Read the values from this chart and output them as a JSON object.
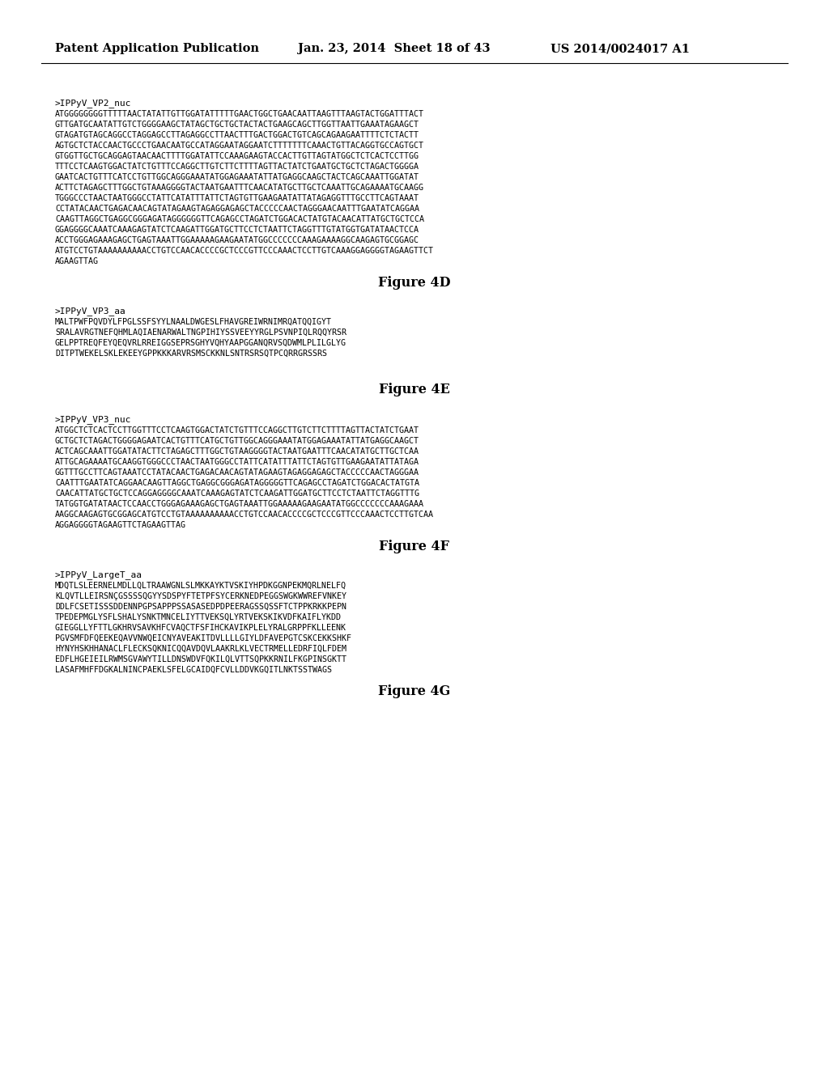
{
  "header_left": "Patent Application Publication",
  "header_mid": "Jan. 23, 2014  Sheet 18 of 43",
  "header_right": "US 2014/0024017 A1",
  "bg_color": "#ffffff",
  "sections": [
    {
      "id": "fig4D",
      "label": ">IPPyV_VP2_nuc",
      "figure_caption": "Figure 4D",
      "content": [
        "ATGGGGGGGGTTTTTAACTATATTGTTGGATATTTTTGAACTGGCTGAACAATTAAGTTTAAGTACTGGATTTACT",
        "GTTGATGCAATATTGTCTGGGGAAGCTATAGCTGCTGCTACTACTGAAGCAGCTTGGTTAATTGAAATAGAAGCT",
        "GTAGATGTAGCAGGCCTAGGAGCCTTAGAGGCCTTAACTTTGACTGGACTGTCAGCAGAAGAATTTTCTCTACTT",
        "AGTGCTCTACCAACTGCCCTGAACAATGCCATAGGAATAGGAATCTTTTTTTCAAACTGTTACAGGTGCCAGTGCT",
        "GTGGTTGCTGCAGGAGTAACAACTTTTGGATATTCCAAAGAAGTACCACTTGTTAGTATGGCTCTCACTCCTTGG",
        "TTTCCTCAAGTGGACTATCTGTTTCCAGGCTTGTCTTCTTTTAGTTACTATCTGAATGCTGCTCTAGACTGGGGA",
        "GAATCACTGTTTCATCCTGTTGGCAGGGAAATATGGAGAAATATTATGAGGCAAGCTACTCAGCAAATTGGATAT",
        "ACTTCTAGAGCTTTGGCTGTAAAGGGGTACTAATGAATTTCAACATATGCTTGCTCAAATTGCAGAAAATGCAAGG",
        "TGGGCCCTAACTAATGGGCCTATTCATATTTATTCTAGTGTTGAAGAATATTATAGAGGTTTGCCTTCAGTAAAT",
        "CCTATACAACTGAGACAACAGTATAGAAGTAGAGGAGAGCTACCCCCAACTAGGGAACAATTTGAATATCAGGAA",
        "CAAGTTAGGCTGAGGCGGGAGATAGGGGGGTTCAGAGCCTAGATCTGGACACTATGTACAACATTATGCTGCTCCA",
        "GGAGGGGCAAATCAAAGAGTATCTCAAGATTGGATGCTTCCTCTAATTCTAGGTTTGTATGGTGATATAACTCCA",
        "ACCTGGGAGAAAGAGCTGAGTAAATTGGAAAAAGAAGAATATGGCCCCCCCAAAGAAAAGGCAAGAGTGCGGAGC",
        "ATGTCCTGTAAAAAAAAAACCTGTCCAACACCCCGCTCCCGTTCCCAAACTCCTTGTCAAAGGAGGGGTAGAAGTTCT",
        "AGAAGTTAG"
      ]
    },
    {
      "id": "fig4E",
      "label": ">IPPyV_VP3_aa",
      "figure_caption": "Figure 4E",
      "content": [
        "MALTPWFPQVDYLFPGLSSFSYYLNAALDWGESLFHAVGREIWRNIMRQATQQIGYT",
        "SRALAVRGTNEFQHMLAQIAENARWALTNGPIHIYSSVEEYYRGLPSVNPIQLRQQYRSR",
        "GELPPTREQFEYQEQVRLRREIGGSEPRSGHYVQHYAAPGGANQRVSQDWMLPLILGLYG",
        "DITPTWEKELSKLEKEEYGPPKKKARVRSMSCKKNLSNTRSRSQTPCQRRGRSSRS"
      ]
    },
    {
      "id": "fig4F",
      "label": ">IPPyV_VP3_nuc",
      "figure_caption": "Figure 4F",
      "content": [
        "ATGGCTCTCACTCCTTGGTTTCCTCAAGTGGACTATCTGTTTCCAGGCTTGTCTTCTTTTAGTTACTATCTGAAT",
        "GCTGCTCTAGACTGGGGAGAATCACTGTTTCATGCTGTTGGCAGGGAAATATGGAGAAATATTATGAGGCAAGCT",
        "ACTCAGCAAATTGGATATACTTCTAGAGCTTTGGCTGTAAGGGGTACTAATGAATTTCAACATATGCTTGCTCAA",
        "ATTGCAGAAAATGCAAGGTGGGCCCTAACTAATGGGCCTATTCATATTTATTCTAGTGTTGAAGAATATTATAGA",
        "GGTTTGCCTTCAGTAAATCCTATACAACTGAGACAACAGTATAGAAGTAGAGGAGAGCTACCCCCAACTAGGGAA",
        "CAATTTGAATATCAGGAACAAGTTAGGCTGAGGCGGGAGATAGGGGGTTCAGAGCCTAGATCTGGACACTATGTA",
        "CAACATTATGCTGCTCCAGGAGGGGCAAATCAAAGAGTATCTCAAGATTGGATGCTTCCTCTAATTCTAGGTTTG",
        "TATGGTGATATAACTCCAACCTGGGAGAAAGAGCTGAGTAAATTGGAAAAAGAAGAATATGGCCCCCCCAAAGAAA",
        "AAGGCAAGAGTGCGGAGCATGTCCTGTAAAAAAAAAACCTGTCCAACACCCCGCTCCCGTTCCCAAACTCCTTGTCAA",
        "AGGAGGGGTAGAAGTTCTAGAAGTTAG"
      ]
    },
    {
      "id": "fig4G",
      "label": ">IPPyV_LargeT_aa",
      "figure_caption": "Figure 4G",
      "content": [
        "MDQTLSLEERNELMDLLQLTRAAWGNLSLMKKAYKTVSKIYHPDKGGNPEKMQRLNELFQ",
        "KLQVTLLEIRSNÇGSSSSQGYYSDSPYFTETPFSYCERKNEDPEGGSWGKWWREFVNKEY",
        "DDLFCSETISSSDDENNPGPSAPPPSSASASEDPDPEERAGSSQSSFTCTPPKRKKPEPN",
        "TPEDEPMGLYSFLSHALYSNKTMNCELIYTTVEKSQLYRTVEKSKIKVDFKAIFLYKDD",
        "GIEGGLLYFTTLGKHRVSAVKHFCVAQCTFSFIHCKAVIKPLELYRALGRPPFKLLEENK",
        "PGVSMFDFQEEKEQAVVNWQEICNYAVEAKITDVLLLLGIYLDFAVEPGTCSKCEKKSHKF",
        "HYNYHSKHHANACLFLЕСKSQKNICQQAVDQVLAAKRLKLVECTRMELLEDRFIQLFDEM",
        "EDFLHGEIEILRWMSGVAWYTILLDNSWDVFQKILQLVTTSQPKKRNILFKGPINSGKTT",
        "LASAFMHFFDGKALNINCPAEKLSFELGCAIDQFCVLLDDVKGQITLNKTSSTWAGS"
      ]
    }
  ]
}
